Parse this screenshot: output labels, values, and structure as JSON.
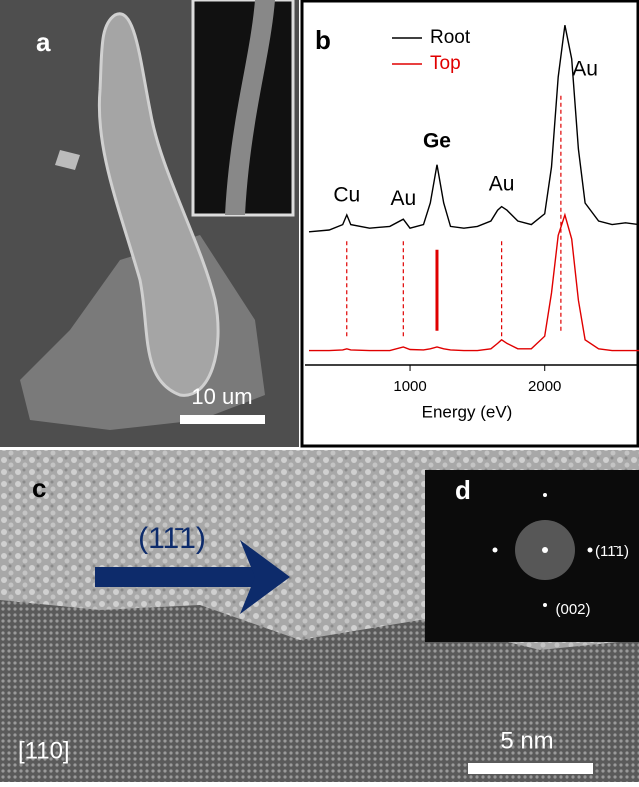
{
  "panels": {
    "a": {
      "label": "a",
      "scale_bar": "10 um"
    },
    "c": {
      "label": "c",
      "direction": "(11̄1)",
      "zone_axis": "[110]",
      "scale_bar": "5 nm"
    },
    "d": {
      "label": "d",
      "spots": [
        "(11̄1)",
        "(002)"
      ]
    }
  },
  "chart_data": {
    "type": "line",
    "panel_label": "b",
    "xlabel": "Energy (eV)",
    "x": [
      250,
      400,
      500,
      530,
      560,
      700,
      850,
      950,
      1000,
      1100,
      1150,
      1200,
      1250,
      1300,
      1400,
      1500,
      1600,
      1650,
      1680,
      1720,
      1800,
      1900,
      2000,
      2050,
      2100,
      2150,
      2200,
      2250,
      2300,
      2400,
      2500,
      2600,
      2700
    ],
    "series": [
      {
        "name": "Root",
        "color": "#000000",
        "values": [
          37,
          37.5,
          39,
          41.7,
          39,
          38,
          38.5,
          40.5,
          38,
          39,
          45,
          55.6,
          45,
          38.5,
          38,
          38.5,
          40,
          43,
          44,
          43,
          40,
          39,
          42,
          55,
          80,
          94.4,
          85,
          60,
          45,
          40,
          39,
          39.5,
          39
        ]
      },
      {
        "name": "Top",
        "color": "#e00000",
        "values": [
          4,
          4,
          4.2,
          4.5,
          4.2,
          4,
          4,
          5,
          4.3,
          4.2,
          4.5,
          5,
          4.5,
          4.2,
          4,
          4,
          4.5,
          6,
          7,
          6,
          4.5,
          4.5,
          8,
          20,
          36,
          41.7,
          35,
          18,
          7,
          4.5,
          4,
          4,
          4
        ]
      }
    ],
    "xlim": [
      220,
      2700
    ],
    "xticks": [
      1000,
      2000
    ],
    "ylim": [
      0,
      100
    ],
    "annotations": [
      {
        "text": "Cu",
        "x": 530,
        "y": 47
      },
      {
        "text": "Au",
        "x": 950,
        "y": 46
      },
      {
        "text": "Ge",
        "x": 1200,
        "y": 62,
        "bold": true
      },
      {
        "text": "Au",
        "x": 1680,
        "y": 50
      },
      {
        "text": "Au",
        "x": 2300,
        "y": 82
      }
    ],
    "markers": [
      {
        "x": 530,
        "y": [
          8,
          35
        ],
        "dashed": true
      },
      {
        "x": 950,
        "y": [
          8,
          35
        ],
        "dashed": true
      },
      {
        "x": 1200,
        "y": [
          9.5,
          32
        ],
        "dashed": false
      },
      {
        "x": 1680,
        "y": [
          8,
          35
        ],
        "dashed": true
      },
      {
        "x": 2120,
        "y": [
          9.5,
          75
        ],
        "dashed": true
      }
    ]
  }
}
